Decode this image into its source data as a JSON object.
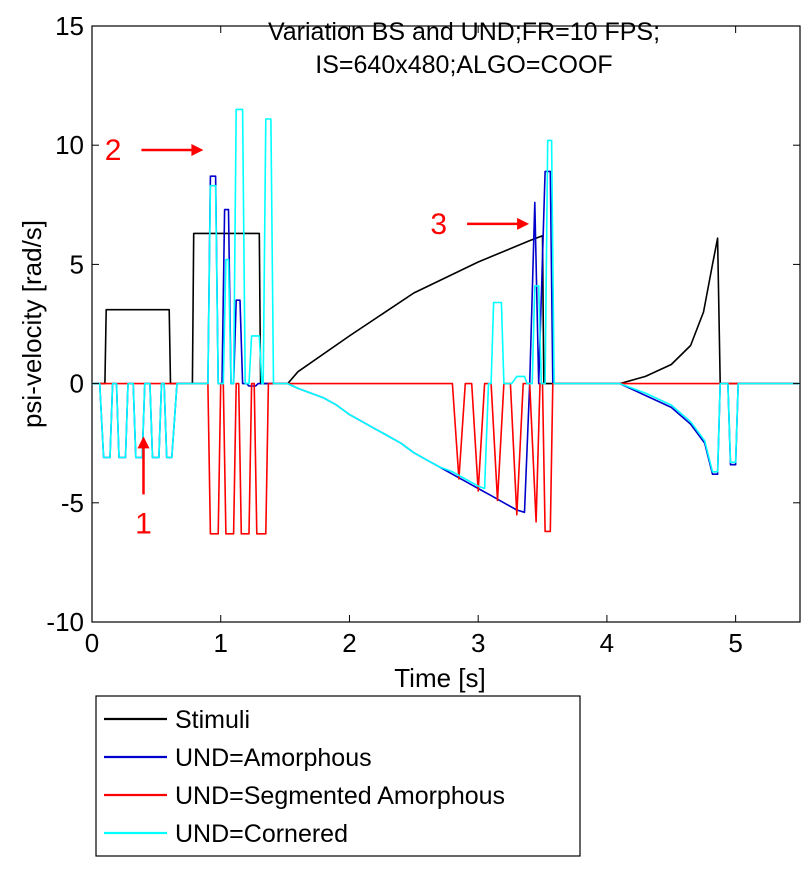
{
  "chart_data": {
    "type": "line",
    "title_lines": [
      "Variation BS and UND;FR=10 FPS;",
      "IS=640x480;ALGO=COOF"
    ],
    "xlabel": "Time [s]",
    "ylabel": "psi-velocity [rad/s]",
    "xlim": [
      0,
      5.5
    ],
    "ylim": [
      -10,
      15
    ],
    "x_ticks": [
      0,
      1,
      2,
      3,
      4,
      5
    ],
    "y_ticks": [
      -10,
      -5,
      0,
      5,
      10,
      15
    ],
    "grid": false,
    "legend_position": "below-left",
    "series": [
      {
        "name": "Stimuli",
        "color": "#000000",
        "points": [
          [
            0,
            0
          ],
          [
            0.1,
            0
          ],
          [
            0.11,
            3.1
          ],
          [
            0.6,
            3.1
          ],
          [
            0.61,
            0
          ],
          [
            0.78,
            0
          ],
          [
            0.79,
            6.3
          ],
          [
            1.3,
            6.3
          ],
          [
            1.31,
            0
          ],
          [
            1.52,
            0
          ],
          [
            1.6,
            0.5
          ],
          [
            2.0,
            2.0
          ],
          [
            2.5,
            3.8
          ],
          [
            3.0,
            5.1
          ],
          [
            3.4,
            6.0
          ],
          [
            3.5,
            6.2
          ],
          [
            3.51,
            0
          ],
          [
            4.1,
            0
          ],
          [
            4.3,
            0.3
          ],
          [
            4.5,
            0.8
          ],
          [
            4.65,
            1.6
          ],
          [
            4.75,
            3.0
          ],
          [
            4.82,
            5.0
          ],
          [
            4.86,
            6.1
          ],
          [
            4.88,
            0
          ],
          [
            5.5,
            0
          ]
        ]
      },
      {
        "name": "UND=Amorphous",
        "color": "#0000cc",
        "points": [
          [
            0,
            0
          ],
          [
            0.06,
            0
          ],
          [
            0.09,
            -3.1
          ],
          [
            0.14,
            -3.1
          ],
          [
            0.16,
            0
          ],
          [
            0.19,
            0
          ],
          [
            0.21,
            -3.1
          ],
          [
            0.26,
            -3.1
          ],
          [
            0.28,
            0
          ],
          [
            0.32,
            0
          ],
          [
            0.34,
            -3.1
          ],
          [
            0.39,
            -3.1
          ],
          [
            0.41,
            0
          ],
          [
            0.45,
            0
          ],
          [
            0.47,
            -3.1
          ],
          [
            0.52,
            -3.1
          ],
          [
            0.54,
            0
          ],
          [
            0.56,
            0
          ],
          [
            0.58,
            -3.1
          ],
          [
            0.62,
            -3.1
          ],
          [
            0.66,
            0
          ],
          [
            0.9,
            0
          ],
          [
            0.92,
            8.7
          ],
          [
            0.96,
            8.7
          ],
          [
            0.98,
            0
          ],
          [
            1.01,
            0
          ],
          [
            1.03,
            7.3
          ],
          [
            1.06,
            7.3
          ],
          [
            1.08,
            0
          ],
          [
            1.1,
            0
          ],
          [
            1.12,
            3.5
          ],
          [
            1.15,
            3.5
          ],
          [
            1.17,
            0
          ],
          [
            1.2,
            0
          ],
          [
            1.22,
            -0.1
          ],
          [
            1.27,
            -0.1
          ],
          [
            1.29,
            0
          ],
          [
            1.52,
            0
          ],
          [
            1.6,
            -0.2
          ],
          [
            1.7,
            -0.4
          ],
          [
            1.8,
            -0.6
          ],
          [
            1.9,
            -0.9
          ],
          [
            2.0,
            -1.3
          ],
          [
            2.1,
            -1.6
          ],
          [
            2.2,
            -1.9
          ],
          [
            2.3,
            -2.2
          ],
          [
            2.4,
            -2.5
          ],
          [
            2.5,
            -2.9
          ],
          [
            2.6,
            -3.2
          ],
          [
            2.7,
            -3.5
          ],
          [
            2.8,
            -3.8
          ],
          [
            2.9,
            -4.1
          ],
          [
            3.0,
            -4.4
          ],
          [
            3.1,
            -4.7
          ],
          [
            3.2,
            -5.0
          ],
          [
            3.3,
            -5.3
          ],
          [
            3.36,
            -5.4
          ],
          [
            3.4,
            0
          ],
          [
            3.44,
            7.6
          ],
          [
            3.47,
            0
          ],
          [
            3.52,
            8.9
          ],
          [
            3.56,
            8.9
          ],
          [
            3.58,
            0
          ],
          [
            4.1,
            0
          ],
          [
            4.3,
            -0.5
          ],
          [
            4.5,
            -1.0
          ],
          [
            4.65,
            -1.7
          ],
          [
            4.76,
            -2.5
          ],
          [
            4.82,
            -3.8
          ],
          [
            4.86,
            -3.8
          ],
          [
            4.88,
            0
          ],
          [
            4.94,
            0
          ],
          [
            4.96,
            -3.4
          ],
          [
            5.0,
            -3.4
          ],
          [
            5.02,
            0
          ],
          [
            5.5,
            0
          ]
        ]
      },
      {
        "name": "UND=Segmented Amorphous",
        "color": "#ff0000",
        "points": [
          [
            0,
            0
          ],
          [
            0.9,
            0
          ],
          [
            0.92,
            -6.3
          ],
          [
            0.98,
            -6.3
          ],
          [
            1.0,
            0
          ],
          [
            1.02,
            0
          ],
          [
            1.04,
            -6.3
          ],
          [
            1.1,
            -6.3
          ],
          [
            1.12,
            0
          ],
          [
            1.14,
            0
          ],
          [
            1.16,
            -6.3
          ],
          [
            1.22,
            -6.3
          ],
          [
            1.24,
            0
          ],
          [
            1.26,
            0
          ],
          [
            1.28,
            -6.3
          ],
          [
            1.35,
            -6.3
          ],
          [
            1.37,
            0
          ],
          [
            2.8,
            0
          ],
          [
            2.85,
            -4.0
          ],
          [
            2.9,
            0
          ],
          [
            2.95,
            0
          ],
          [
            3.0,
            -4.5
          ],
          [
            3.05,
            0
          ],
          [
            3.1,
            0
          ],
          [
            3.15,
            -4.9
          ],
          [
            3.2,
            0
          ],
          [
            3.25,
            0
          ],
          [
            3.3,
            -5.5
          ],
          [
            3.35,
            0
          ],
          [
            3.4,
            0
          ],
          [
            3.45,
            -5.8
          ],
          [
            3.48,
            0
          ],
          [
            3.5,
            0
          ],
          [
            3.52,
            -6.2
          ],
          [
            3.56,
            -6.2
          ],
          [
            3.58,
            0
          ],
          [
            5.5,
            0
          ]
        ]
      },
      {
        "name": "UND=Cornered",
        "color": "#00ffff",
        "points": [
          [
            0,
            0
          ],
          [
            0.06,
            0
          ],
          [
            0.09,
            -3.1
          ],
          [
            0.14,
            -3.1
          ],
          [
            0.16,
            0
          ],
          [
            0.19,
            0
          ],
          [
            0.21,
            -3.1
          ],
          [
            0.26,
            -3.1
          ],
          [
            0.28,
            0
          ],
          [
            0.32,
            0
          ],
          [
            0.34,
            -3.1
          ],
          [
            0.39,
            -3.1
          ],
          [
            0.41,
            0
          ],
          [
            0.45,
            0
          ],
          [
            0.47,
            -3.1
          ],
          [
            0.52,
            -3.1
          ],
          [
            0.54,
            0
          ],
          [
            0.56,
            0
          ],
          [
            0.58,
            -3.1
          ],
          [
            0.62,
            -3.1
          ],
          [
            0.66,
            0
          ],
          [
            0.9,
            0
          ],
          [
            0.92,
            8.3
          ],
          [
            0.96,
            8.3
          ],
          [
            0.98,
            0
          ],
          [
            1.02,
            0
          ],
          [
            1.04,
            5.2
          ],
          [
            1.06,
            5.2
          ],
          [
            1.08,
            0
          ],
          [
            1.1,
            0
          ],
          [
            1.12,
            11.5
          ],
          [
            1.17,
            11.5
          ],
          [
            1.19,
            0
          ],
          [
            1.22,
            0
          ],
          [
            1.24,
            2.0
          ],
          [
            1.3,
            2.0
          ],
          [
            1.32,
            0
          ],
          [
            1.33,
            0
          ],
          [
            1.35,
            11.1
          ],
          [
            1.39,
            11.1
          ],
          [
            1.41,
            0
          ],
          [
            1.52,
            0
          ],
          [
            1.6,
            -0.2
          ],
          [
            1.7,
            -0.4
          ],
          [
            1.8,
            -0.6
          ],
          [
            1.9,
            -0.9
          ],
          [
            2.0,
            -1.3
          ],
          [
            2.1,
            -1.6
          ],
          [
            2.2,
            -1.9
          ],
          [
            2.3,
            -2.2
          ],
          [
            2.4,
            -2.5
          ],
          [
            2.5,
            -2.9
          ],
          [
            2.6,
            -3.2
          ],
          [
            2.7,
            -3.5
          ],
          [
            2.8,
            -3.7
          ],
          [
            2.9,
            -4.0
          ],
          [
            3.0,
            -4.3
          ],
          [
            3.05,
            -4.4
          ],
          [
            3.08,
            0
          ],
          [
            3.1,
            0
          ],
          [
            3.12,
            3.4
          ],
          [
            3.18,
            3.4
          ],
          [
            3.2,
            0
          ],
          [
            3.26,
            0
          ],
          [
            3.3,
            0.3
          ],
          [
            3.36,
            0.3
          ],
          [
            3.38,
            0
          ],
          [
            3.42,
            0
          ],
          [
            3.44,
            4.1
          ],
          [
            3.47,
            4.1
          ],
          [
            3.49,
            0
          ],
          [
            3.52,
            0
          ],
          [
            3.54,
            10.2
          ],
          [
            3.57,
            10.2
          ],
          [
            3.59,
            0
          ],
          [
            4.1,
            0
          ],
          [
            4.3,
            -0.4
          ],
          [
            4.5,
            -0.9
          ],
          [
            4.65,
            -1.6
          ],
          [
            4.76,
            -2.4
          ],
          [
            4.82,
            -3.7
          ],
          [
            4.86,
            -3.7
          ],
          [
            4.88,
            0
          ],
          [
            4.94,
            0
          ],
          [
            4.96,
            -3.3
          ],
          [
            5.0,
            -3.3
          ],
          [
            5.02,
            0
          ],
          [
            5.5,
            0
          ]
        ]
      }
    ],
    "annotations": [
      {
        "text": "1",
        "arrow": "up",
        "x": 0.4,
        "y": -2.3
      },
      {
        "text": "2",
        "arrow": "right",
        "x": 0.85,
        "y": 9.8
      },
      {
        "text": "3",
        "arrow": "right",
        "x": 3.38,
        "y": 6.7
      }
    ]
  }
}
